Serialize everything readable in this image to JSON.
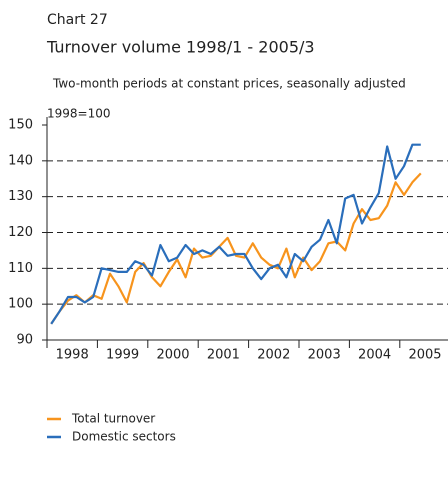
{
  "chart_data": {
    "type": "line",
    "label": "Chart 27",
    "title": "Turnover volume 1998/1 - 2005/3",
    "subtitle": "Two-month periods at constant prices, seasonally adjusted",
    "y_label": "1998=100",
    "categories": [
      "1998",
      null,
      null,
      null,
      null,
      null,
      "1999",
      null,
      null,
      null,
      null,
      null,
      "2000",
      null,
      null,
      null,
      null,
      null,
      "2001",
      null,
      null,
      null,
      null,
      null,
      "2002",
      null,
      null,
      null,
      null,
      null,
      "2003",
      null,
      null,
      null,
      null,
      null,
      "2004",
      null,
      null,
      null,
      null,
      null,
      "2005",
      null,
      null
    ],
    "series": [
      {
        "name": "Total turnover",
        "color": "#f7941d",
        "values": [
          94.5,
          98,
          101,
          102.5,
          100.5,
          102.5,
          101.5,
          108.5,
          105,
          100.5,
          109,
          111.5,
          107.5,
          105,
          109,
          112.5,
          107.5,
          115.5,
          113,
          113.5,
          116,
          118.5,
          113.5,
          113,
          117,
          113,
          111,
          110,
          115.5,
          107.5,
          113,
          109.5,
          112,
          117,
          117.5,
          115,
          122.5,
          126.5,
          123.5,
          124,
          127.5,
          134,
          130.5,
          134,
          136.5
        ]
      },
      {
        "name": "Domestic sectors",
        "color": "#2a6ebb",
        "values": [
          94.5,
          98,
          102,
          102,
          100.5,
          102,
          110,
          109.5,
          109,
          109,
          112,
          111,
          108,
          116.5,
          112,
          113,
          116.5,
          114,
          115,
          114,
          116,
          113.5,
          114,
          114,
          110,
          107,
          110,
          111,
          107.5,
          114,
          112,
          116,
          118,
          123.5,
          117,
          129.5,
          130.5,
          122.5,
          127,
          131,
          144,
          135,
          138.5,
          144.5,
          144.5
        ]
      }
    ],
    "ylim": [
      90,
      150
    ],
    "yticks": [
      90,
      100,
      110,
      120,
      130,
      140,
      150
    ],
    "grid": true
  }
}
